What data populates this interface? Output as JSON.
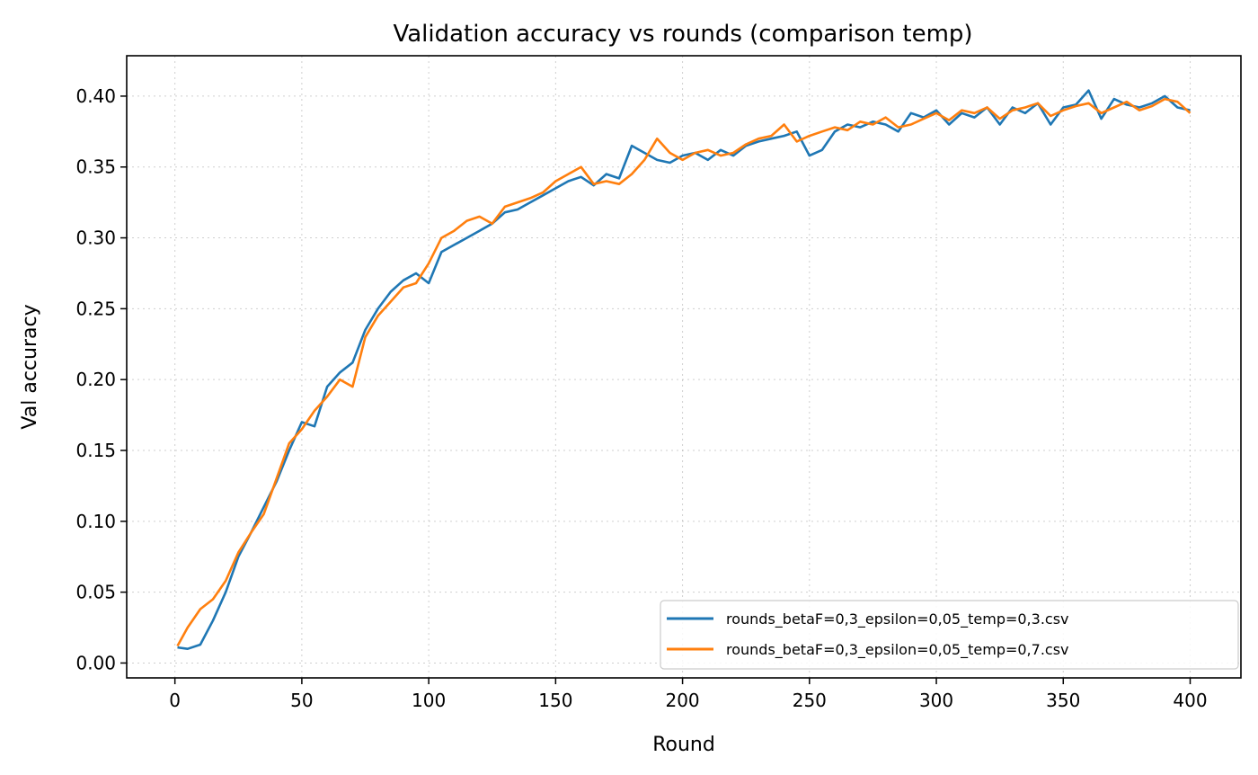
{
  "chart_data": {
    "type": "line",
    "title": "Validation accuracy vs rounds (comparison temp)",
    "xlabel": "Round",
    "ylabel": "Val accuracy",
    "xlim": [
      -19,
      420
    ],
    "ylim": [
      -0.0105,
      0.4285
    ],
    "xticks": [
      0,
      50,
      100,
      150,
      200,
      250,
      300,
      350,
      400
    ],
    "yticks": [
      0.0,
      0.05,
      0.1,
      0.15,
      0.2,
      0.25,
      0.3,
      0.35,
      0.4
    ],
    "xtick_labels": [
      "0",
      "50",
      "100",
      "150",
      "200",
      "250",
      "300",
      "350",
      "400"
    ],
    "ytick_labels": [
      "0.00",
      "0.05",
      "0.10",
      "0.15",
      "0.20",
      "0.25",
      "0.30",
      "0.35",
      "0.40"
    ],
    "grid": true,
    "legend_position": "lower-right",
    "series": [
      {
        "name": "rounds_betaF=0,3_epsilon=0,05_temp=0,3.csv",
        "color": "#1f77b4",
        "x": [
          1,
          5,
          10,
          15,
          20,
          25,
          30,
          35,
          40,
          45,
          50,
          55,
          60,
          65,
          70,
          75,
          80,
          85,
          90,
          95,
          100,
          105,
          110,
          115,
          120,
          125,
          130,
          135,
          140,
          145,
          150,
          155,
          160,
          165,
          170,
          175,
          180,
          185,
          190,
          195,
          200,
          205,
          210,
          215,
          220,
          225,
          230,
          235,
          240,
          245,
          250,
          255,
          260,
          265,
          270,
          275,
          280,
          285,
          290,
          295,
          300,
          305,
          310,
          315,
          320,
          325,
          330,
          335,
          340,
          345,
          350,
          355,
          360,
          365,
          370,
          375,
          380,
          385,
          390,
          395,
          400
        ],
        "y": [
          0.011,
          0.01,
          0.013,
          0.03,
          0.05,
          0.075,
          0.092,
          0.11,
          0.128,
          0.15,
          0.17,
          0.167,
          0.195,
          0.205,
          0.212,
          0.235,
          0.25,
          0.262,
          0.27,
          0.275,
          0.268,
          0.29,
          0.295,
          0.3,
          0.305,
          0.31,
          0.318,
          0.32,
          0.325,
          0.33,
          0.335,
          0.34,
          0.343,
          0.337,
          0.345,
          0.342,
          0.365,
          0.36,
          0.355,
          0.353,
          0.358,
          0.36,
          0.355,
          0.362,
          0.358,
          0.365,
          0.368,
          0.37,
          0.372,
          0.375,
          0.358,
          0.362,
          0.375,
          0.38,
          0.378,
          0.382,
          0.38,
          0.375,
          0.388,
          0.385,
          0.39,
          0.38,
          0.388,
          0.385,
          0.392,
          0.38,
          0.392,
          0.388,
          0.395,
          0.38,
          0.392,
          0.394,
          0.404,
          0.384,
          0.398,
          0.394,
          0.392,
          0.395,
          0.4,
          0.392,
          0.39
        ]
      },
      {
        "name": "rounds_betaF=0,3_epsilon=0,05_temp=0,7.csv",
        "color": "#ff7f0e",
        "x": [
          1,
          5,
          10,
          15,
          20,
          25,
          30,
          35,
          40,
          45,
          50,
          55,
          60,
          65,
          70,
          75,
          80,
          85,
          90,
          95,
          100,
          105,
          110,
          115,
          120,
          125,
          130,
          135,
          140,
          145,
          150,
          155,
          160,
          165,
          170,
          175,
          180,
          185,
          190,
          195,
          200,
          205,
          210,
          215,
          220,
          225,
          230,
          235,
          240,
          245,
          250,
          255,
          260,
          265,
          270,
          275,
          280,
          285,
          290,
          295,
          300,
          305,
          310,
          315,
          320,
          325,
          330,
          335,
          340,
          345,
          350,
          355,
          360,
          365,
          370,
          375,
          380,
          385,
          390,
          395,
          400
        ],
        "y": [
          0.012,
          0.025,
          0.038,
          0.045,
          0.058,
          0.078,
          0.092,
          0.105,
          0.13,
          0.155,
          0.165,
          0.178,
          0.188,
          0.2,
          0.195,
          0.23,
          0.245,
          0.255,
          0.265,
          0.268,
          0.282,
          0.3,
          0.305,
          0.312,
          0.315,
          0.31,
          0.322,
          0.325,
          0.328,
          0.332,
          0.34,
          0.345,
          0.35,
          0.338,
          0.34,
          0.338,
          0.345,
          0.355,
          0.37,
          0.36,
          0.355,
          0.36,
          0.362,
          0.358,
          0.36,
          0.366,
          0.37,
          0.372,
          0.38,
          0.368,
          0.372,
          0.375,
          0.378,
          0.376,
          0.382,
          0.38,
          0.385,
          0.378,
          0.38,
          0.384,
          0.388,
          0.383,
          0.39,
          0.388,
          0.392,
          0.384,
          0.39,
          0.392,
          0.395,
          0.386,
          0.39,
          0.393,
          0.395,
          0.388,
          0.392,
          0.396,
          0.39,
          0.393,
          0.398,
          0.396,
          0.388
        ]
      }
    ]
  }
}
